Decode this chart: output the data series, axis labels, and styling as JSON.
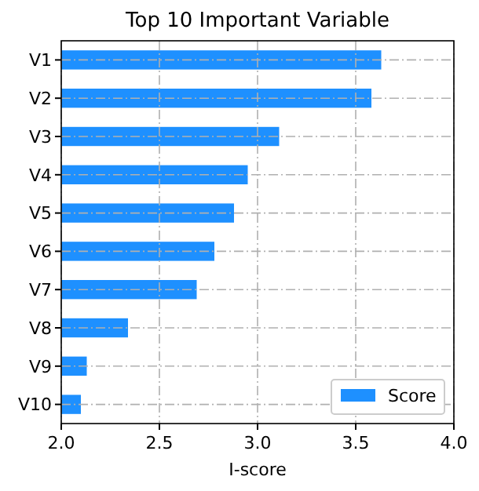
{
  "chart_data": {
    "type": "bar",
    "orientation": "horizontal",
    "title": "Top 10 Important Variable",
    "xlabel": "I-score",
    "categories": [
      "V1",
      "V2",
      "V3",
      "V4",
      "V5",
      "V6",
      "V7",
      "V8",
      "V9",
      "V10"
    ],
    "series": [
      {
        "name": "Score",
        "color": "#1e90ff",
        "values": [
          3.63,
          3.58,
          3.11,
          2.95,
          2.88,
          2.78,
          2.69,
          2.34,
          2.13,
          2.1
        ]
      }
    ],
    "xlim": [
      2.0,
      4.0
    ],
    "xticks": [
      {
        "value": 2.0,
        "label": "2.0"
      },
      {
        "value": 2.5,
        "label": "2.5"
      },
      {
        "value": 3.0,
        "label": "3.0"
      },
      {
        "value": 3.5,
        "label": "3.5"
      },
      {
        "value": 4.0,
        "label": "4.0"
      }
    ],
    "grid": true,
    "legend": "bottom right"
  }
}
